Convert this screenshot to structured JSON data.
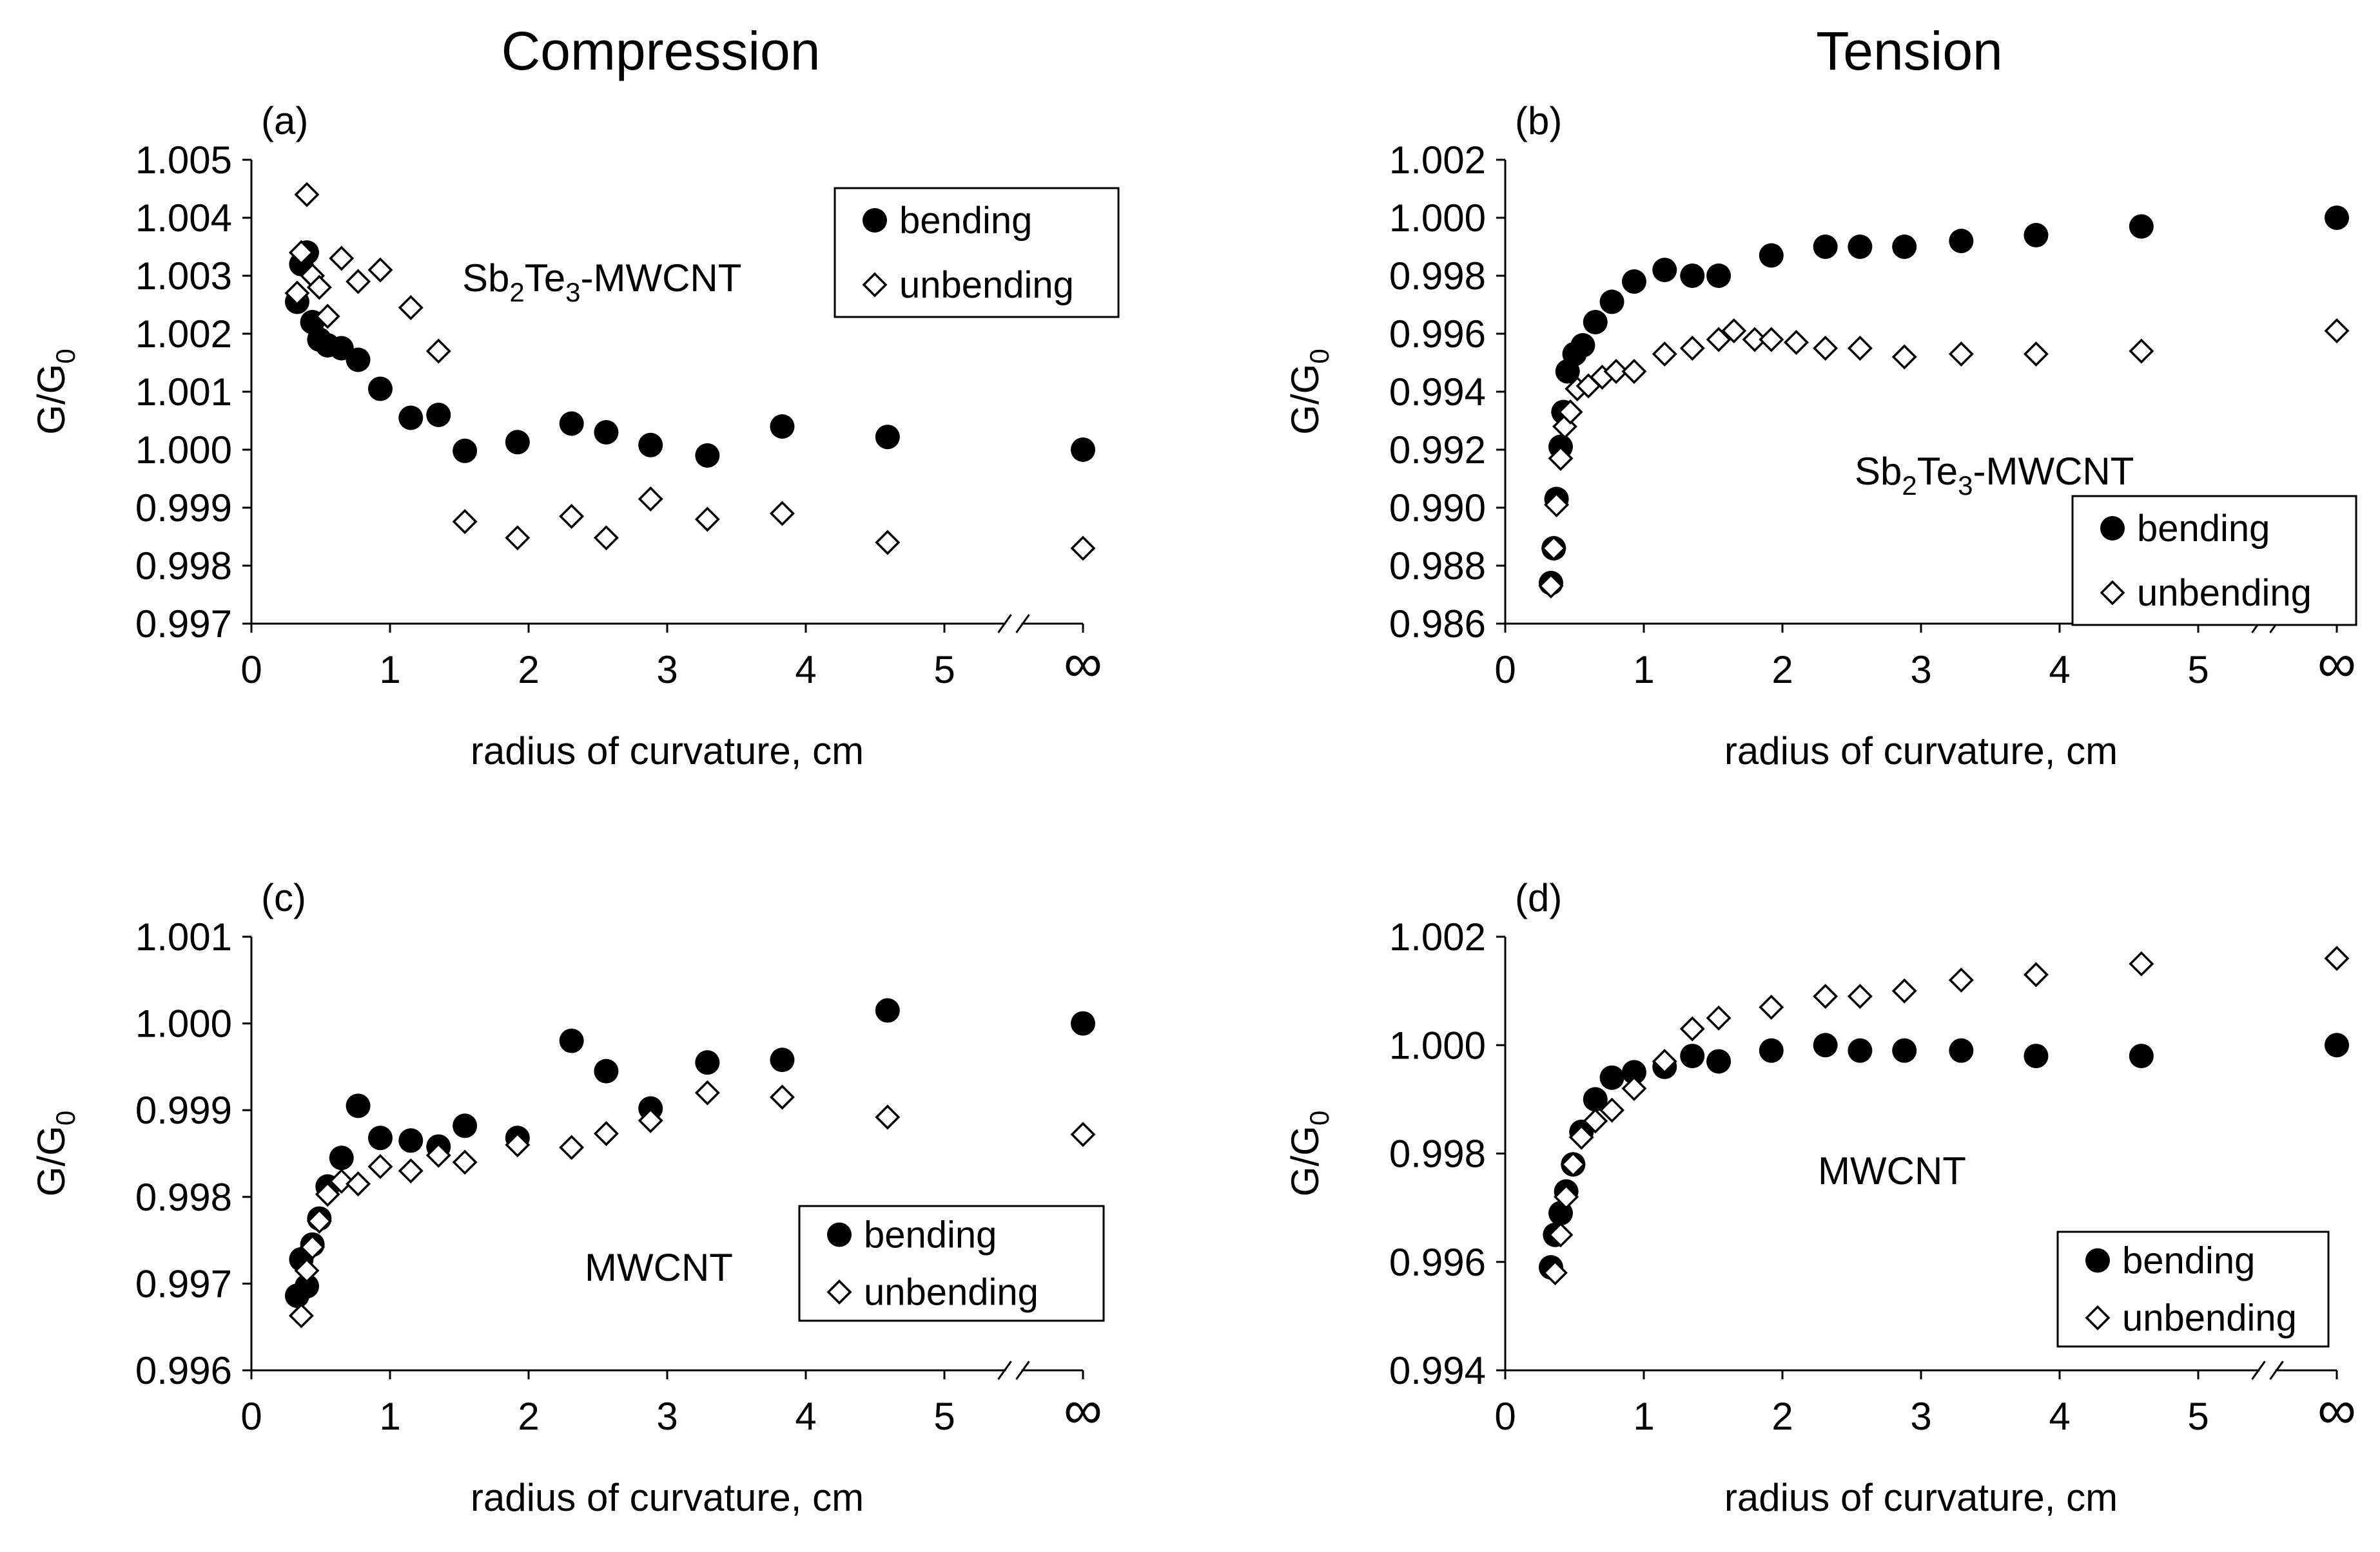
{
  "column_titles": [
    "Compression",
    "Tension"
  ],
  "chart_data": [
    {
      "type": "scatter",
      "panel": "(a)",
      "annotation": {
        "base": "Sb2Te3-MWCNT",
        "parts": [
          [
            "Sb",
            ""
          ],
          [
            "2",
            "sub"
          ],
          [
            "Te",
            ""
          ],
          [
            "3",
            "sub"
          ],
          [
            "-MWCNT",
            ""
          ]
        ]
      },
      "xlabel": "radius of curvature, cm",
      "ylabel": {
        "main": "G/G",
        "sub": "0"
      },
      "xlim": [
        0,
        6
      ],
      "ylim": [
        0.997,
        1.005
      ],
      "xticks": [
        "0",
        "1",
        "2",
        "3",
        "4",
        "5",
        "∞"
      ],
      "yticks": [
        "0.997",
        "0.998",
        "0.999",
        "1.000",
        "1.001",
        "1.002",
        "1.003",
        "1.004",
        "1.005"
      ],
      "axis_break": true,
      "legend_position": "top-right",
      "series": [
        {
          "name": "bending",
          "marker": "filled-circle",
          "x": [
            0.33,
            0.36,
            0.4,
            0.44,
            0.49,
            0.55,
            0.65,
            0.77,
            0.93,
            1.15,
            1.35,
            1.54,
            1.92,
            2.31,
            2.56,
            2.88,
            3.29,
            3.83,
            4.59,
            6.0
          ],
          "y": [
            1.00255,
            1.0032,
            1.0034,
            1.0022,
            1.0019,
            1.0018,
            1.00175,
            1.00155,
            1.00105,
            1.00055,
            1.0006,
            0.99998,
            1.00013,
            1.00045,
            1.0003,
            1.00008,
            0.9999,
            1.0004,
            1.00022,
            1.0
          ]
        },
        {
          "name": "unbending",
          "marker": "open-diamond",
          "x": [
            0.33,
            0.36,
            0.4,
            0.44,
            0.49,
            0.55,
            0.65,
            0.77,
            0.93,
            1.15,
            1.35,
            1.54,
            1.92,
            2.31,
            2.56,
            2.88,
            3.29,
            3.83,
            4.59,
            6.0
          ],
          "y": [
            1.0027,
            1.0034,
            1.0044,
            1.003,
            1.0028,
            1.0023,
            1.0033,
            1.0029,
            1.0031,
            1.00245,
            1.0017,
            0.99876,
            0.99848,
            0.99885,
            0.99848,
            0.99915,
            0.9988,
            0.9989,
            0.9984,
            0.9983
          ]
        }
      ]
    },
    {
      "type": "scatter",
      "panel": "(b)",
      "annotation": {
        "base": "Sb2Te3-MWCNT",
        "parts": [
          [
            "Sb",
            ""
          ],
          [
            "2",
            "sub"
          ],
          [
            "Te",
            ""
          ],
          [
            "3",
            "sub"
          ],
          [
            "-MWCNT",
            ""
          ]
        ]
      },
      "xlabel": "radius of curvature, cm",
      "ylabel": {
        "main": "G/G",
        "sub": "0"
      },
      "xlim": [
        0,
        6
      ],
      "ylim": [
        0.986,
        1.002
      ],
      "xticks": [
        "0",
        "1",
        "2",
        "3",
        "4",
        "5",
        "∞"
      ],
      "yticks": [
        "0.986",
        "0.988",
        "0.990",
        "0.992",
        "0.994",
        "0.996",
        "0.998",
        "1.000",
        "1.002"
      ],
      "axis_break": true,
      "legend_position": "center-right",
      "series": [
        {
          "name": "bending",
          "marker": "filled-circle",
          "x": [
            0.33,
            0.35,
            0.37,
            0.4,
            0.42,
            0.45,
            0.5,
            0.56,
            0.65,
            0.77,
            0.93,
            1.15,
            1.35,
            1.54,
            1.92,
            2.31,
            2.56,
            2.88,
            3.29,
            3.83,
            4.59,
            6.0
          ],
          "y": [
            0.9874,
            0.9886,
            0.9903,
            0.9921,
            0.9933,
            0.9947,
            0.9953,
            0.9956,
            0.9964,
            0.9971,
            0.9978,
            0.9982,
            0.998,
            0.998,
            0.9987,
            0.999,
            0.999,
            0.999,
            0.9992,
            0.9994,
            0.9997,
            1.0
          ]
        },
        {
          "name": "unbending",
          "marker": "open-diamond",
          "x": [
            0.33,
            0.35,
            0.37,
            0.4,
            0.43,
            0.47,
            0.52,
            0.6,
            0.7,
            0.8,
            0.93,
            1.15,
            1.35,
            1.54,
            1.65,
            1.8,
            1.92,
            2.1,
            2.31,
            2.56,
            2.88,
            3.29,
            3.83,
            4.59,
            6.0
          ],
          "y": [
            0.9873,
            0.9886,
            0.9901,
            0.9917,
            0.9928,
            0.9933,
            0.9941,
            0.9942,
            0.9945,
            0.9947,
            0.9947,
            0.9953,
            0.9955,
            0.9958,
            0.9961,
            0.9958,
            0.9958,
            0.9957,
            0.9955,
            0.9955,
            0.9952,
            0.9953,
            0.9953,
            0.9954,
            0.9961
          ]
        }
      ]
    },
    {
      "type": "scatter",
      "panel": "(c)",
      "annotation": {
        "base": "MWCNT",
        "parts": [
          [
            "MWCNT",
            ""
          ]
        ]
      },
      "xlabel": "radius of curvature, cm",
      "ylabel": {
        "main": "G/G",
        "sub": "0"
      },
      "xlim": [
        0,
        6
      ],
      "ylim": [
        0.996,
        1.001
      ],
      "xticks": [
        "0",
        "1",
        "2",
        "3",
        "4",
        "5",
        "∞"
      ],
      "yticks": [
        "0.996",
        "0.997",
        "0.998",
        "0.999",
        "1.000",
        "1.001"
      ],
      "axis_break": true,
      "legend_position": "bottom-right",
      "series": [
        {
          "name": "bending",
          "marker": "filled-circle",
          "x": [
            0.33,
            0.36,
            0.4,
            0.44,
            0.49,
            0.55,
            0.65,
            0.77,
            0.93,
            1.15,
            1.35,
            1.54,
            1.92,
            2.31,
            2.56,
            2.88,
            3.29,
            3.83,
            4.59,
            6.0
          ],
          "y": [
            0.99686,
            0.99728,
            0.99697,
            0.99745,
            0.99775,
            0.99812,
            0.99845,
            0.99905,
            0.99868,
            0.99865,
            0.99858,
            0.99882,
            0.99868,
            0.9998,
            0.99945,
            0.99902,
            0.99955,
            0.99958,
            1.00015,
            1.0
          ]
        },
        {
          "name": "unbending",
          "marker": "open-diamond",
          "x": [
            0.36,
            0.4,
            0.44,
            0.49,
            0.55,
            0.65,
            0.77,
            0.93,
            1.15,
            1.35,
            1.54,
            1.92,
            2.31,
            2.56,
            2.88,
            3.29,
            3.83,
            4.59,
            6.0
          ],
          "y": [
            0.99663,
            0.99715,
            0.99742,
            0.99772,
            0.99803,
            0.99818,
            0.99815,
            0.99835,
            0.9983,
            0.99848,
            0.9984,
            0.9986,
            0.99857,
            0.99873,
            0.99888,
            0.9992,
            0.99915,
            0.99892,
            0.99872
          ]
        }
      ]
    },
    {
      "type": "scatter",
      "panel": "(d)",
      "annotation": {
        "base": "MWCNT",
        "parts": [
          [
            "MWCNT",
            ""
          ]
        ]
      },
      "xlabel": "radius of curvature, cm",
      "ylabel": {
        "main": "G/G",
        "sub": "0"
      },
      "xlim": [
        0,
        6
      ],
      "ylim": [
        0.994,
        1.002
      ],
      "xticks": [
        "0",
        "1",
        "2",
        "3",
        "4",
        "5",
        "∞"
      ],
      "yticks": [
        "0.994",
        "0.996",
        "0.998",
        "1.000",
        "1.002"
      ],
      "axis_break": true,
      "legend_position": "bottom-right",
      "series": [
        {
          "name": "bending",
          "marker": "filled-circle",
          "x": [
            0.33,
            0.36,
            0.4,
            0.44,
            0.49,
            0.55,
            0.65,
            0.77,
            0.93,
            1.15,
            1.35,
            1.54,
            1.92,
            2.31,
            2.56,
            2.88,
            3.29,
            3.83,
            4.59,
            6.0
          ],
          "y": [
            0.9959,
            0.9965,
            0.9969,
            0.9973,
            0.9978,
            0.9984,
            0.999,
            0.9994,
            0.9995,
            0.9996,
            0.9998,
            0.9997,
            0.9999,
            1.0,
            0.9999,
            0.9999,
            0.9999,
            0.9998,
            0.9998,
            1.0
          ]
        },
        {
          "name": "unbending",
          "marker": "open-diamond",
          "x": [
            0.36,
            0.4,
            0.44,
            0.49,
            0.55,
            0.65,
            0.77,
            0.93,
            1.15,
            1.35,
            1.54,
            1.92,
            2.31,
            2.56,
            2.88,
            3.29,
            3.83,
            4.59,
            6.0
          ],
          "y": [
            0.9958,
            0.9965,
            0.9972,
            0.9978,
            0.9983,
            0.9986,
            0.9988,
            0.9992,
            0.9997,
            1.0003,
            1.0005,
            1.0007,
            1.0009,
            1.0009,
            1.001,
            1.0012,
            1.0013,
            1.0015,
            1.0016
          ]
        }
      ]
    }
  ]
}
